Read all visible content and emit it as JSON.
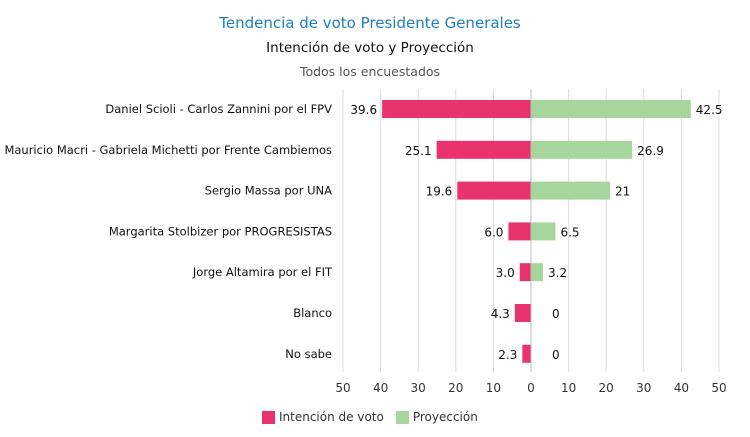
{
  "chart_data": {
    "type": "bar",
    "orientation": "horizontal-diverging",
    "title": "Tendencia de voto Presidente Generales",
    "subtitle": "Intención de voto y Proyección",
    "caption": "Todos los encuestados",
    "categories": [
      "Daniel Scioli - Carlos Zannini por el FPV",
      "Mauricio Macri - Gabriela Michetti por Frente Cambiemos",
      "Sergio Massa por UNA",
      "Margarita Stolbizer por PROGRESISTAS",
      "Jorge Altamira por el FIT",
      "Blanco",
      "No sabe"
    ],
    "series": [
      {
        "name": "Intención de voto",
        "color": "#e8336e",
        "direction": "left",
        "values": [
          39.6,
          25.1,
          19.6,
          6.0,
          3.0,
          4.3,
          2.3
        ],
        "labels": [
          "39.6",
          "25.1",
          "19.6",
          "6.0",
          "3.0",
          "4.3",
          "2.3"
        ]
      },
      {
        "name": "Proyección",
        "color": "#a6d69b",
        "direction": "right",
        "values": [
          42.5,
          26.9,
          21,
          6.5,
          3.2,
          0,
          0
        ],
        "labels": [
          "42.5",
          "26.9",
          "21",
          "6.5",
          "3.2",
          "0",
          "0"
        ]
      }
    ],
    "xlim": [
      -50,
      50
    ],
    "x_ticks": [
      -50,
      -40,
      -30,
      -20,
      -10,
      0,
      10,
      20,
      30,
      40,
      50
    ],
    "x_tick_labels": [
      "50",
      "40",
      "30",
      "20",
      "10",
      "0",
      "10",
      "20",
      "30",
      "40",
      "50"
    ],
    "grid": true,
    "legend_position": "bottom"
  }
}
